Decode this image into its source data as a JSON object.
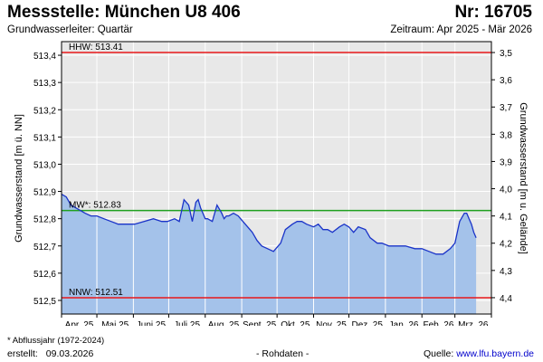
{
  "header": {
    "title": "Messstelle: München U8 406",
    "nr": "Nr: 16705",
    "subtitle": "Grundwasserleiter: Quartär",
    "period": "Zeitraum: Apr 2025 - Mär 2026"
  },
  "footer": {
    "footnote": "* Abflussjahr (1972-2024)",
    "created_label": "erstellt:",
    "created_date": "09.03.2026",
    "rawdata": "- Rohdaten -",
    "source_label": "Quelle:",
    "source_link": "www.lfu.bayern.de"
  },
  "colors": {
    "fill": "#a4c2ea",
    "line": "#1a33c8",
    "hhw": "#e8181b",
    "nnw": "#e8181b",
    "mw": "#1fa01f",
    "grid": "#ffffff",
    "plot_bg": "#e8e8e8"
  },
  "chart_data": {
    "type": "area",
    "ylabel_left": "Grundwasserstand [m ü. NN]",
    "ylabel_right": "Grundwasserstand [m u. Gelände]",
    "ylim": [
      512.45,
      513.45
    ],
    "y_ticks": [
      512.5,
      512.6,
      512.7,
      512.8,
      512.9,
      513.0,
      513.1,
      513.2,
      513.3,
      513.4
    ],
    "y_tick_labels": [
      "512,5",
      "512,6",
      "512,7",
      "512,8",
      "512,9",
      "513,0",
      "513,1",
      "513,2",
      "513,3",
      "513,4"
    ],
    "right_axis": {
      "ticks": [
        3.5,
        3.6,
        3.7,
        3.8,
        3.9,
        4.0,
        4.1,
        4.2,
        4.3,
        4.4
      ],
      "tick_labels": [
        "3,5",
        "3,6",
        "3,7",
        "3,8",
        "3,9",
        "4,0",
        "4,1",
        "4,2",
        "4,3",
        "4,4"
      ],
      "reference_level": 516.91
    },
    "xlim": [
      0,
      365
    ],
    "x_ticks": [
      0,
      30,
      61,
      91,
      122,
      153,
      183,
      214,
      244,
      275,
      306,
      334,
      365
    ],
    "x_tick_labels": [
      "Apr. 25",
      "Mai 25",
      "Juni 25",
      "Juli 25",
      "Aug. 25",
      "Sept. 25",
      "Okt. 25",
      "Nov. 25",
      "Dez. 25",
      "Jan. 26",
      "Feb. 26",
      "Mrz. 26"
    ],
    "reference_lines": [
      {
        "name": "HHW",
        "label": "HHW: 513.41",
        "value": 513.41,
        "color": "#e8181b"
      },
      {
        "name": "MW",
        "label": "MW*: 512.83",
        "value": 512.83,
        "color": "#1fa01f"
      },
      {
        "name": "NNW",
        "label": "NNW: 512.51",
        "value": 512.51,
        "color": "#e8181b"
      }
    ],
    "x": [
      0,
      4,
      8,
      12,
      16,
      20,
      25,
      30,
      36,
      42,
      48,
      55,
      62,
      70,
      78,
      85,
      90,
      96,
      100,
      104,
      108,
      111,
      114,
      116,
      118,
      120,
      122,
      124,
      128,
      132,
      136,
      138,
      140,
      142,
      146,
      150,
      154,
      158,
      162,
      166,
      170,
      175,
      180,
      186,
      190,
      196,
      200,
      204,
      208,
      214,
      218,
      222,
      226,
      230,
      236,
      240,
      244,
      248,
      252,
      258,
      262,
      268,
      272,
      278,
      284,
      292,
      300,
      306,
      312,
      318,
      324,
      330,
      334,
      338,
      342,
      344,
      346,
      348,
      350,
      352
    ],
    "values": [
      512.89,
      512.88,
      512.85,
      512.84,
      512.83,
      512.82,
      512.81,
      512.81,
      512.8,
      512.79,
      512.78,
      512.78,
      512.78,
      512.79,
      512.8,
      512.79,
      512.79,
      512.8,
      512.79,
      512.87,
      512.85,
      512.79,
      512.86,
      512.87,
      512.84,
      512.82,
      512.8,
      512.8,
      512.79,
      512.85,
      512.82,
      512.8,
      512.81,
      512.81,
      512.82,
      512.81,
      512.79,
      512.77,
      512.75,
      512.72,
      512.7,
      512.69,
      512.68,
      512.71,
      512.76,
      512.78,
      512.79,
      512.79,
      512.78,
      512.77,
      512.78,
      512.76,
      512.76,
      512.75,
      512.77,
      512.78,
      512.77,
      512.75,
      512.77,
      512.76,
      512.73,
      512.71,
      512.71,
      512.7,
      512.7,
      512.7,
      512.69,
      512.69,
      512.68,
      512.67,
      512.67,
      512.69,
      512.71,
      512.79,
      512.82,
      512.82,
      512.8,
      512.78,
      512.75,
      512.73
    ]
  }
}
